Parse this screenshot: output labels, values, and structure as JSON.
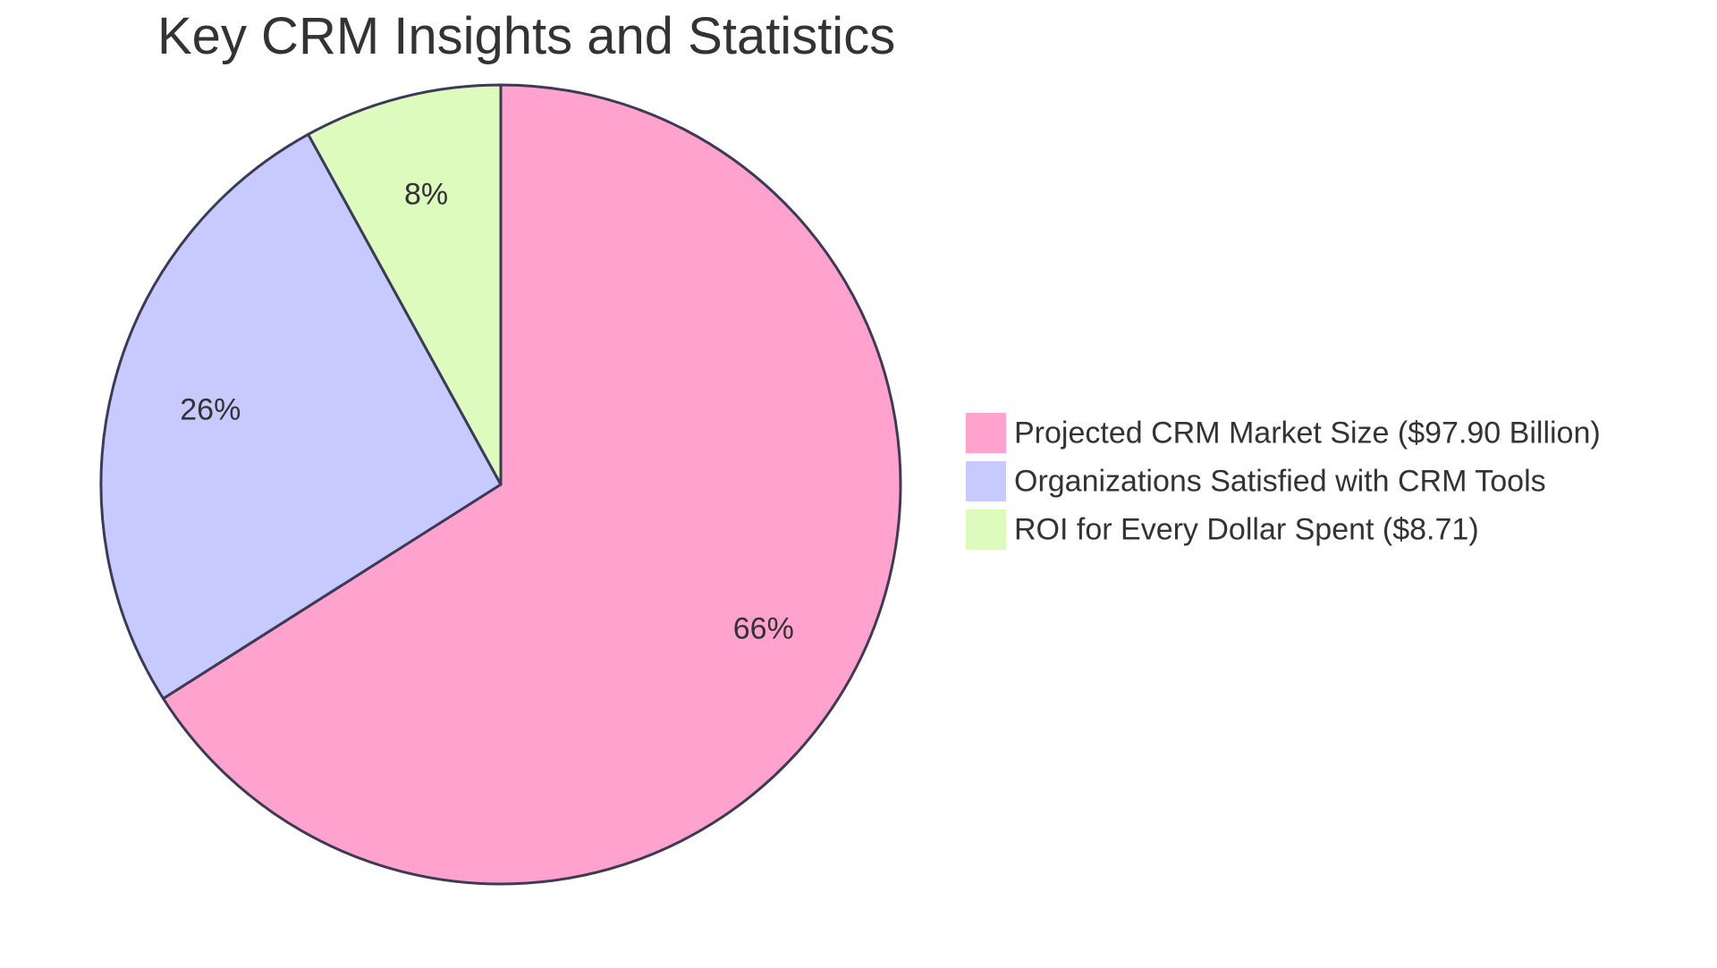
{
  "chart_data": {
    "type": "pie",
    "title": "Key CRM Insights and Statistics",
    "slices": [
      {
        "label": "Projected CRM Market Size ($97.90 Billion)",
        "value": 66,
        "display": "66%",
        "color": "#FFA3CE"
      },
      {
        "label": "Organizations Satisfied with CRM Tools",
        "value": 26,
        "display": "26%",
        "color": "#C7CAFF"
      },
      {
        "label": "ROI for Every Dollar Spent ($8.71)",
        "value": 8,
        "display": "8%",
        "color": "#DCFBBD"
      }
    ],
    "legend_position": "right",
    "stroke_color": "#3D3A55"
  }
}
